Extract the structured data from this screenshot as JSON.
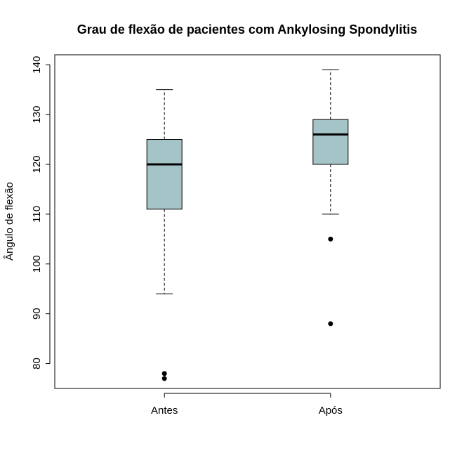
{
  "chart_data": {
    "type": "box",
    "title": "Grau de flexão de pacientes com Ankylosing Spondylitis",
    "xlabel": "",
    "ylabel": "Ângulo de flexão",
    "categories": [
      "Antes",
      "Após"
    ],
    "ylim": [
      75,
      142
    ],
    "yticks": [
      80,
      90,
      100,
      110,
      120,
      130,
      140
    ],
    "box_color": "#a5c4c8",
    "series": [
      {
        "category": "Antes",
        "whisker_low": 94,
        "q1": 111,
        "median": 120,
        "q3": 125,
        "whisker_high": 135,
        "outliers": [
          77,
          78
        ]
      },
      {
        "category": "Após",
        "whisker_low": 110,
        "q1": 120,
        "median": 126,
        "q3": 129,
        "whisker_high": 139,
        "outliers": [
          88,
          105
        ]
      }
    ]
  }
}
